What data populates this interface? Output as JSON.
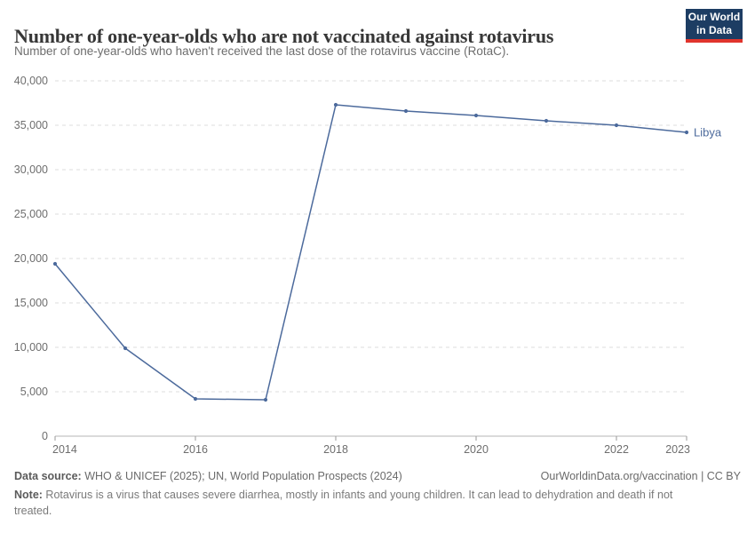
{
  "header": {
    "title": "Number of one-year-olds who are not vaccinated against rotavirus",
    "subtitle": "Number of one-year-olds who haven't received the last dose of the rotavirus vaccine (RotaC).",
    "logo_line1": "Our World",
    "logo_line2": "in Data"
  },
  "chart_data": {
    "type": "line",
    "title": "Number of one-year-olds who are not vaccinated against rotavirus",
    "x": [
      2014,
      2015,
      2016,
      2017,
      2018,
      2019,
      2020,
      2021,
      2022,
      2023
    ],
    "series": [
      {
        "name": "Libya",
        "values": [
          19400,
          9900,
          4200,
          4100,
          37300,
          36600,
          36100,
          35500,
          35000,
          34200
        ]
      }
    ],
    "xlabel": "",
    "ylabel": "",
    "ylim": [
      0,
      40000
    ],
    "yticks": [
      0,
      5000,
      10000,
      15000,
      20000,
      25000,
      30000,
      35000,
      40000
    ],
    "xticks": [
      2014,
      2016,
      2018,
      2020,
      2022,
      2023
    ],
    "grid": "horizontal-dashed",
    "legend_position": "end-of-line-label",
    "entity_label": "Libya",
    "line_color": "#4c6a9c"
  },
  "colors": {
    "accent_navy": "#1d3d63",
    "accent_red": "#e0342c",
    "axis_text": "#6e6e6e",
    "gridline": "#dcdcdc",
    "axis_line": "#b5b5b5",
    "tick": "#9a9a9a"
  },
  "footer": {
    "data_source_label": "Data source:",
    "data_source_text": " WHO & UNICEF (2025); UN, World Population Prospects (2024)",
    "link_text": "OurWorldinData.org/vaccination | CC BY",
    "note_label": "Note:",
    "note_text": " Rotavirus is a virus that causes severe diarrhea, mostly in infants and young children. It can lead to dehydration and death if not treated."
  }
}
